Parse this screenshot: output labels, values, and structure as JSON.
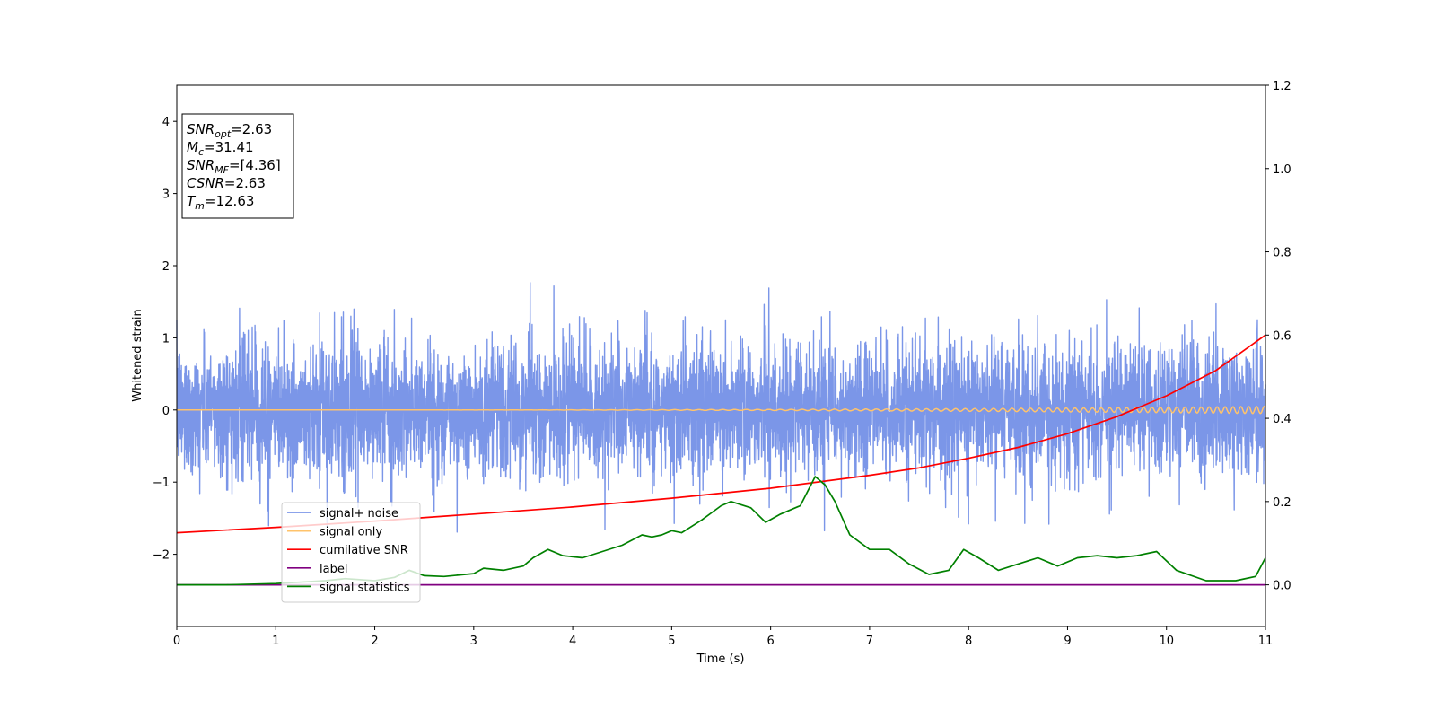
{
  "chart_data": {
    "type": "line",
    "xlabel": "Time (s)",
    "ylabel": "Whitened strain",
    "xlim": [
      0,
      11
    ],
    "ylim_left": [
      -3,
      4.5
    ],
    "ylim_right": [
      -0.1,
      1.2
    ],
    "x_ticks": [
      "0",
      "1",
      "2",
      "3",
      "4",
      "5",
      "6",
      "7",
      "8",
      "9",
      "10",
      "11"
    ],
    "y_left_ticks": [
      "−2",
      "−1",
      "0",
      "1",
      "2",
      "3",
      "4"
    ],
    "y_right_ticks": [
      "0.0",
      "0.2",
      "0.4",
      "0.6",
      "0.8",
      "1.0",
      "1.2"
    ],
    "info_box": [
      {
        "var": "SNR",
        "sub": "opt",
        "value": "=2.63"
      },
      {
        "var": "M",
        "sub": "c",
        "value": "=31.41"
      },
      {
        "var": "SNR",
        "sub": "MF",
        "value": "=[4.36]"
      },
      {
        "var": "CSNR",
        "sub": "",
        "value": "=2.63"
      },
      {
        "var": "T",
        "sub": "m",
        "value": "=12.63"
      }
    ],
    "legend": {
      "placement": "lower-left",
      "entries": [
        {
          "label": "signal+ noise",
          "color": "#7b96e8"
        },
        {
          "label": "signal only",
          "color": "#ffc36b"
        },
        {
          "label": "cumilative SNR",
          "color": "#ff0000"
        },
        {
          "label": "label",
          "color": "#800080"
        },
        {
          "label": "signal statistics",
          "color": "#008000"
        }
      ]
    },
    "series": [
      {
        "name": "signal+ noise",
        "axis": "left",
        "color": "#7b96e8",
        "kind": "noise",
        "std": 0.45
      },
      {
        "name": "signal only",
        "axis": "left",
        "color": "#ffc36b",
        "kind": "chirp",
        "amplitude_end": 0.05
      },
      {
        "name": "cumilative SNR",
        "axis": "right",
        "x": [
          0,
          1,
          2,
          3,
          4,
          5,
          6,
          7,
          7.5,
          8,
          8.5,
          9,
          9.5,
          10,
          10.5,
          11
        ],
        "y": [
          0.125,
          0.138,
          0.153,
          0.17,
          0.187,
          0.208,
          0.232,
          0.263,
          0.281,
          0.304,
          0.33,
          0.363,
          0.404,
          0.454,
          0.515,
          0.6
        ]
      },
      {
        "name": "label",
        "axis": "right",
        "x": [
          0,
          11
        ],
        "y": [
          0,
          0
        ]
      },
      {
        "name": "signal statistics",
        "axis": "right",
        "x": [
          0,
          0.5,
          1,
          1.5,
          1.7,
          2,
          2.2,
          2.35,
          2.5,
          2.7,
          3,
          3.1,
          3.3,
          3.5,
          3.6,
          3.75,
          3.9,
          4.1,
          4.3,
          4.5,
          4.7,
          4.8,
          4.9,
          5,
          5.1,
          5.3,
          5.5,
          5.6,
          5.8,
          5.95,
          6.1,
          6.3,
          6.45,
          6.55,
          6.65,
          6.8,
          7,
          7.2,
          7.4,
          7.6,
          7.8,
          7.95,
          8.1,
          8.3,
          8.5,
          8.7,
          8.9,
          9.1,
          9.3,
          9.5,
          9.7,
          9.9,
          10.1,
          10.4,
          10.7,
          10.9,
          11
        ],
        "y": [
          0,
          0,
          0.003,
          0.01,
          0.015,
          0.01,
          0.018,
          0.035,
          0.022,
          0.02,
          0.027,
          0.04,
          0.035,
          0.045,
          0.065,
          0.085,
          0.07,
          0.065,
          0.08,
          0.095,
          0.12,
          0.115,
          0.12,
          0.13,
          0.125,
          0.155,
          0.19,
          0.2,
          0.185,
          0.15,
          0.17,
          0.19,
          0.26,
          0.24,
          0.2,
          0.12,
          0.085,
          0.085,
          0.05,
          0.025,
          0.035,
          0.085,
          0.065,
          0.035,
          0.05,
          0.065,
          0.045,
          0.065,
          0.07,
          0.065,
          0.07,
          0.08,
          0.035,
          0.01,
          0.01,
          0.02,
          0.065
        ]
      }
    ]
  }
}
